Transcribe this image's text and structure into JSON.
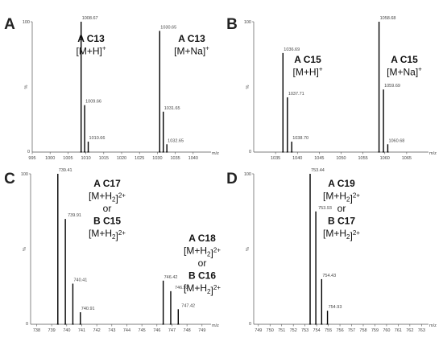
{
  "chart_data": [
    {
      "id": "A",
      "type": "bar",
      "panel_label": "A",
      "xlim": [
        995,
        1045
      ],
      "xticks": [
        995,
        1000,
        1005,
        1010,
        1015,
        1020,
        1025,
        1030,
        1035,
        1040
      ],
      "xunit": "m/z",
      "ytick_top": "100",
      "ytick_mid": "%",
      "ytick_bottom": "0",
      "peaks": [
        {
          "x": 1008.67,
          "y": 100,
          "label": "1008.67"
        },
        {
          "x": 1009.66,
          "y": 36,
          "label": "1009.66"
        },
        {
          "x": 1010.66,
          "y": 8,
          "label": "1010.66"
        },
        {
          "x": 1030.65,
          "y": 93,
          "label": "1030.65"
        },
        {
          "x": 1031.65,
          "y": 31,
          "label": "1031.65"
        },
        {
          "x": 1032.65,
          "y": 6,
          "label": "1032.65"
        }
      ],
      "annotations": [
        {
          "lines": [
            [
              {
                "t": "A C13",
                "b": true
              }
            ],
            [
              {
                "t": "[M+H]"
              },
              {
                "t": "+",
                "sup": true
              }
            ]
          ]
        },
        {
          "lines": [
            [
              {
                "t": "A C13",
                "b": true
              }
            ],
            [
              {
                "t": "[M+Na]"
              },
              {
                "t": "+",
                "sup": true
              }
            ]
          ]
        }
      ]
    },
    {
      "id": "B",
      "type": "bar",
      "panel_label": "B",
      "xlim": [
        1030,
        1070
      ],
      "xticks": [
        1035,
        1040,
        1045,
        1050,
        1055,
        1060,
        1065
      ],
      "xunit": "m/z",
      "ytick_top": "100",
      "ytick_mid": "%",
      "ytick_bottom": "0",
      "peaks": [
        {
          "x": 1036.69,
          "y": 76,
          "label": "1036.69"
        },
        {
          "x": 1037.71,
          "y": 42,
          "label": "1037.71"
        },
        {
          "x": 1038.7,
          "y": 8,
          "label": "1038.70"
        },
        {
          "x": 1058.68,
          "y": 100,
          "label": "1058.68"
        },
        {
          "x": 1059.69,
          "y": 48,
          "label": "1059.69"
        },
        {
          "x": 1060.68,
          "y": 6,
          "label": "1060.68"
        }
      ],
      "annotations": [
        {
          "lines": [
            [
              {
                "t": "A C15",
                "b": true
              }
            ],
            [
              {
                "t": "[M+H]"
              },
              {
                "t": "+",
                "sup": true
              }
            ]
          ]
        },
        {
          "lines": [
            [
              {
                "t": "A C15",
                "b": true
              }
            ],
            [
              {
                "t": "[M+Na]"
              },
              {
                "t": "+",
                "sup": true
              }
            ]
          ]
        }
      ]
    },
    {
      "id": "C",
      "type": "bar",
      "panel_label": "C",
      "xlim": [
        737.6,
        749.6
      ],
      "xticks": [
        738,
        739,
        740,
        741,
        742,
        743,
        744,
        745,
        746,
        747,
        748,
        749
      ],
      "xunit": "m/z",
      "ytick_top": "100",
      "ytick_mid": "%",
      "ytick_bottom": "0",
      "peaks": [
        {
          "x": 739.41,
          "y": 100,
          "label": "739.41"
        },
        {
          "x": 739.91,
          "y": 70,
          "label": "739.91"
        },
        {
          "x": 740.41,
          "y": 27,
          "label": "740.41"
        },
        {
          "x": 740.91,
          "y": 8,
          "label": "740.91"
        },
        {
          "x": 746.42,
          "y": 29,
          "label": "746.42"
        },
        {
          "x": 746.92,
          "y": 22,
          "label": "746.92"
        },
        {
          "x": 747.42,
          "y": 10,
          "label": "747.42"
        }
      ],
      "annotations": [
        {
          "lines": [
            [
              {
                "t": "A C17",
                "b": true
              }
            ],
            [
              {
                "t": "[M+H"
              },
              {
                "t": "2",
                "sub": true
              },
              {
                "t": "]"
              },
              {
                "t": "2+",
                "sup": true
              }
            ],
            [
              {
                "t": "or"
              }
            ],
            [
              {
                "t": "B C15",
                "b": true
              }
            ],
            [
              {
                "t": "[M+H"
              },
              {
                "t": "2",
                "sub": true
              },
              {
                "t": "]"
              },
              {
                "t": "2+",
                "sup": true
              }
            ]
          ]
        },
        {
          "lines": [
            [
              {
                "t": "A C18",
                "b": true
              }
            ],
            [
              {
                "t": "[M+H"
              },
              {
                "t": "2",
                "sub": true
              },
              {
                "t": "]"
              },
              {
                "t": "2+",
                "sup": true
              }
            ],
            [
              {
                "t": "or"
              }
            ],
            [
              {
                "t": "B C16",
                "b": true
              }
            ],
            [
              {
                "t": "[M+H"
              },
              {
                "t": "2",
                "sub": true
              },
              {
                "t": "]"
              },
              {
                "t": "2+",
                "sup": true
              }
            ]
          ]
        }
      ]
    },
    {
      "id": "D",
      "type": "bar",
      "panel_label": "D",
      "xlim": [
        748.6,
        763.6
      ],
      "xticks": [
        749,
        750,
        751,
        752,
        753,
        754,
        755,
        756,
        757,
        758,
        759,
        760,
        761,
        762,
        763
      ],
      "xunit": "m/z",
      "ytick_top": "100",
      "ytick_mid": "%",
      "ytick_bottom": "0",
      "peaks": [
        {
          "x": 753.44,
          "y": 100,
          "label": "753.44"
        },
        {
          "x": 753.93,
          "y": 75,
          "label": "753.93"
        },
        {
          "x": 754.43,
          "y": 30,
          "label": "754.43"
        },
        {
          "x": 754.93,
          "y": 9,
          "label": "754.93"
        }
      ],
      "annotations": [
        {
          "lines": [
            [
              {
                "t": "A C19",
                "b": true
              }
            ],
            [
              {
                "t": "[M+H"
              },
              {
                "t": "2",
                "sub": true
              },
              {
                "t": "]"
              },
              {
                "t": "2+",
                "sup": true
              }
            ],
            [
              {
                "t": "or"
              }
            ],
            [
              {
                "t": "B C17",
                "b": true
              }
            ],
            [
              {
                "t": "[M+H"
              },
              {
                "t": "2",
                "sub": true
              },
              {
                "t": "]"
              },
              {
                "t": "2+",
                "sup": true
              }
            ]
          ]
        }
      ]
    }
  ]
}
